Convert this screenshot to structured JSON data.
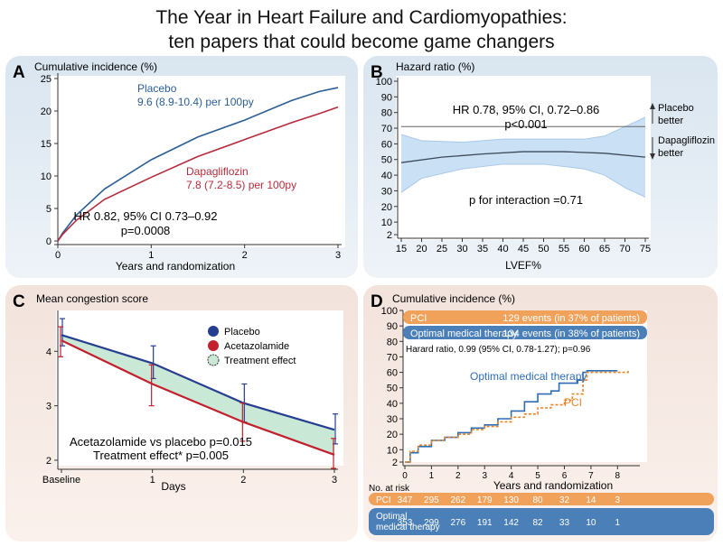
{
  "title_line1": "The Year in Heart Failure and Cardiomyopathies:",
  "title_line2": "ten papers that could become game changers",
  "chart_data": [
    {
      "panel": "A",
      "type": "line",
      "ylabel": "Cumulative incidence (%)",
      "xlabel": "Years and randomization",
      "xlim": [
        0,
        3
      ],
      "ylim": [
        0,
        25
      ],
      "x_ticks": [
        0,
        1,
        2,
        3
      ],
      "y_ticks": [
        0,
        5,
        10,
        15,
        20,
        25
      ],
      "series": [
        {
          "name_line1": "Placebo",
          "name_line2": "9.6 (8.9-10.4) per 100py",
          "color": "#2a5e95",
          "x": [
            0,
            0.05,
            0.2,
            0.5,
            1.0,
            1.5,
            2.0,
            2.5,
            2.8,
            3.0
          ],
          "y": [
            0,
            1.2,
            4.0,
            8.0,
            12.5,
            16.0,
            18.6,
            21.6,
            23.0,
            23.6
          ]
        },
        {
          "name_line1": "Dapagliflozin",
          "name_line2": "7.8 (7.2-8.5) per 100py",
          "color": "#b52b3c",
          "x": [
            0,
            0.05,
            0.2,
            0.5,
            1.0,
            1.5,
            2.0,
            2.5,
            2.8,
            3.0
          ],
          "y": [
            0,
            1.0,
            3.2,
            6.4,
            9.8,
            13.0,
            15.6,
            18.2,
            19.6,
            20.6
          ]
        }
      ],
      "annotation_line1": "HR 0.82, 95% CI 0.73–0.92",
      "annotation_line2": "p=0.0008"
    },
    {
      "panel": "B",
      "type": "line",
      "ylabel": "Hazard ratio (%)",
      "xlabel": "LVEF%",
      "x_ticks": [
        15,
        20,
        25,
        30,
        35,
        40,
        45,
        50,
        55,
        60,
        65,
        70,
        75
      ],
      "y_ticks": [
        2,
        10,
        20,
        30,
        40,
        50,
        60,
        70,
        80,
        90,
        100
      ],
      "reference_line": 71,
      "series": [
        {
          "name": "estimate",
          "color": "#3a4a5a",
          "x": [
            15,
            25,
            35,
            45,
            55,
            65,
            75
          ],
          "y": [
            48,
            51.5,
            53.5,
            55,
            55,
            54,
            51.5
          ]
        },
        {
          "name": "ci_upper",
          "color": "#a7c9e8",
          "x": [
            15,
            20,
            30,
            40,
            50,
            60,
            65,
            70,
            75
          ],
          "y": [
            66,
            62,
            61,
            63,
            63,
            63,
            65,
            71,
            77
          ]
        },
        {
          "name": "ci_lower",
          "color": "#a7c9e8",
          "x": [
            15,
            20,
            30,
            40,
            50,
            60,
            65,
            70,
            75
          ],
          "y": [
            29,
            38,
            44,
            47,
            47,
            44,
            40,
            32,
            26
          ]
        }
      ],
      "annotation_line1": "HR 0.78, 95% CI, 0.72–0.86",
      "annotation_line2": "p<0.001",
      "annotation_line3": "p for interaction =0.71",
      "arrow_up_line1": "Placebo",
      "arrow_up_line2": "better",
      "arrow_down_line1": "Dapagliflozin",
      "arrow_down_line2": "better"
    },
    {
      "panel": "C",
      "type": "line",
      "ylabel": "Mean congestion score",
      "xlabel": "Days",
      "x_ticks": [
        "Baseline",
        "1",
        "2",
        "3"
      ],
      "y_ticks": [
        2,
        3,
        4
      ],
      "series": [
        {
          "name": "Placebo",
          "color": "#263e91",
          "x": [
            0,
            1,
            2,
            3
          ],
          "y": [
            4.3,
            3.78,
            3.05,
            2.56
          ],
          "err_low": [
            4.1,
            3.5,
            2.7,
            2.3
          ],
          "err_high": [
            4.6,
            4.1,
            3.4,
            2.85
          ]
        },
        {
          "name": "Acetazolamide",
          "color": "#c3202e",
          "x": [
            0,
            1,
            2,
            3
          ],
          "y": [
            4.2,
            3.4,
            2.7,
            2.1
          ],
          "err_low": [
            3.9,
            3.0,
            2.35,
            1.85
          ],
          "err_high": [
            4.45,
            3.75,
            3.05,
            2.4
          ]
        }
      ],
      "legend_effect": "Treatment effect",
      "annotation_line1": "Acetazolamide vs placebo p=0.015",
      "annotation_line2": "Treatment effect* p=0.005"
    },
    {
      "panel": "D",
      "type": "line",
      "ylabel": "Cumulative incidence (%)",
      "xlabel": "Years and randomization",
      "x_ticks": [
        0,
        1,
        2,
        3,
        4,
        5,
        6,
        7,
        8
      ],
      "y_ticks": [
        2,
        10,
        20,
        30,
        40,
        50,
        60,
        70,
        80,
        90,
        100
      ],
      "series": [
        {
          "name": "Optimal medical therapy",
          "color": "#2e6db3",
          "x": [
            0,
            0.2,
            0.5,
            1,
            1.5,
            2,
            2.5,
            3,
            3.5,
            4,
            4.5,
            5,
            5.5,
            5.8,
            6.5,
            6.7,
            6.85,
            8
          ],
          "y": [
            2,
            8,
            12,
            16,
            18,
            21,
            24,
            26,
            30,
            35,
            41,
            46,
            48,
            53,
            55,
            60,
            61,
            61
          ]
        },
        {
          "name": "PCI",
          "color": "#e8852a",
          "x": [
            0,
            0.2,
            0.5,
            1,
            1.5,
            2,
            2.5,
            3,
            3.5,
            4,
            4.5,
            5,
            5.5,
            6,
            6.3,
            6.7,
            6.85,
            8.4
          ],
          "y": [
            2,
            9,
            13,
            16,
            18,
            20,
            23,
            25,
            28,
            31,
            33,
            37,
            39,
            42,
            46,
            55,
            60,
            61
          ]
        }
      ],
      "legend_pci": "PCI",
      "legend_pci_events": "129 events (in 37% of patients)",
      "legend_omt": "Optimal medical therapy",
      "legend_omt_events": "134 events (in 38% of patients)",
      "hazard_text": "Harard ratio, 0.99 (95% CI, 0.78-1.27); p=0.96",
      "risk_header": "No. at risk",
      "risk_pci_label": "PCI",
      "risk_pci": [
        347,
        295,
        262,
        179,
        130,
        80,
        32,
        14,
        3
      ],
      "risk_omt_label_line1": "Optimal",
      "risk_omt_label_line2": "medical therapy",
      "risk_omt": [
        353,
        299,
        276,
        191,
        142,
        82,
        33,
        10,
        1
      ]
    }
  ],
  "panel_labels": {
    "a": "A",
    "b": "B",
    "c": "C",
    "d": "D"
  },
  "colors": {
    "panel_blue": "#dde7f1",
    "panel_peach": "#f6e8e1",
    "ci_band": "#b8d5f0",
    "treatment_effect": "#c9e8d6",
    "pci_bar": "#f0a15a",
    "omt_bar": "#4a7fb7"
  }
}
